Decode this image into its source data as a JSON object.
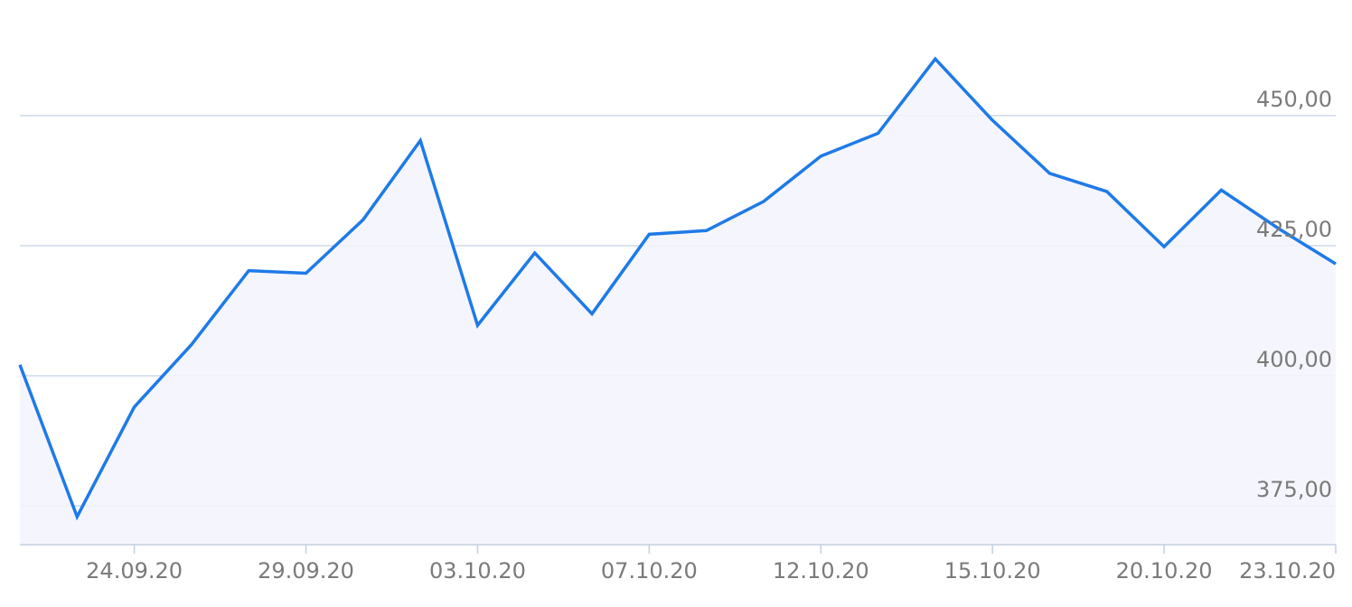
{
  "chart_data": {
    "type": "area",
    "title": "",
    "xlabel": "",
    "ylabel": "",
    "ylim": [
      368,
      468
    ],
    "y_ticks": [
      375,
      400,
      425,
      450
    ],
    "y_tick_labels": [
      "375,00",
      "400,00",
      "425,00",
      "450,00"
    ],
    "x_tick_labels": [
      "24.09.20",
      "29.09.20",
      "03.10.20",
      "07.10.20",
      "12.10.20",
      "15.10.20",
      "20.10.20",
      "23.10.20"
    ],
    "y_axis_position": "right",
    "grid": true,
    "colors": {
      "line": "#1e7ae8",
      "fill": "#f3f4fd",
      "grid": "#cdd9ea",
      "axis": "#c4cfe0",
      "label": "#7a7a7a"
    },
    "series": [
      {
        "values": [
          402.1,
          372.9,
          394.0,
          406.0,
          420.2,
          419.7,
          430.0,
          445.2,
          409.7,
          423.6,
          411.9,
          427.2,
          427.9,
          433.5,
          442.2,
          446.6,
          460.9,
          449.1,
          438.9,
          435.4,
          424.8,
          435.7,
          428.3,
          421.5
        ]
      }
    ]
  }
}
